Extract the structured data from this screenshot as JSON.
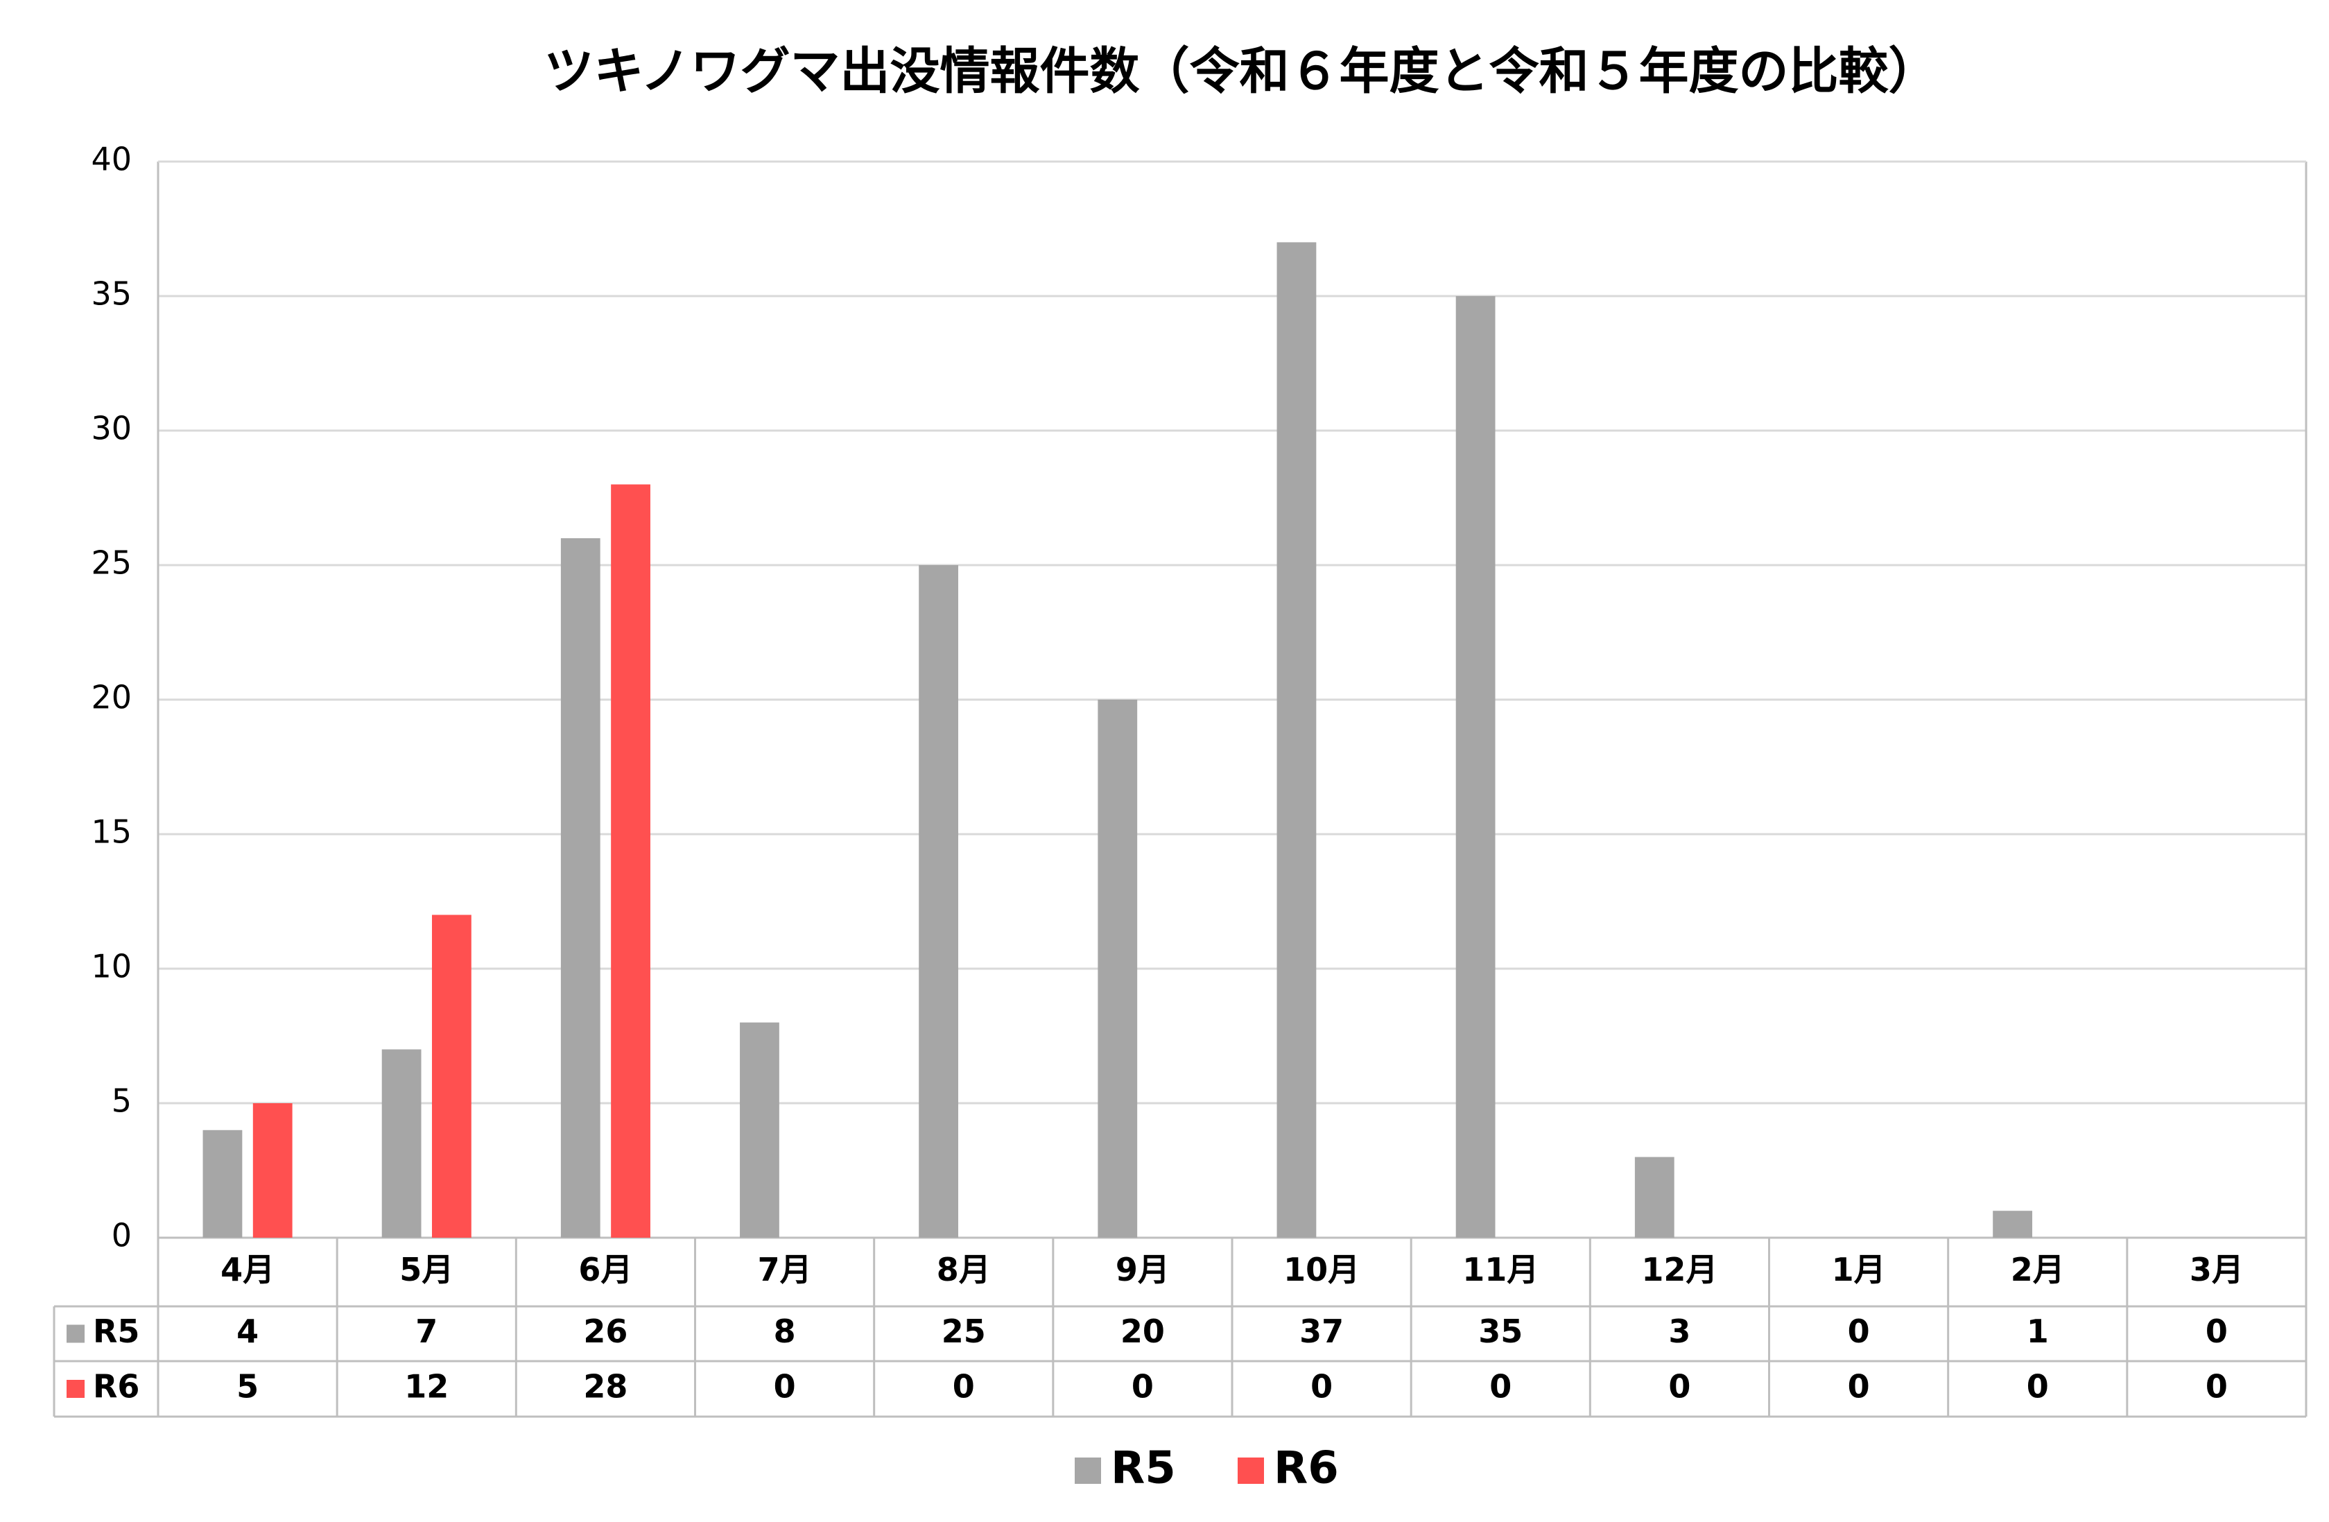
{
  "chart_data": {
    "type": "bar",
    "title": "ツキノワグマ出没情報件数（令和６年度と令和５年度の比較）",
    "categories": [
      "4月",
      "5月",
      "6月",
      "7月",
      "8月",
      "9月",
      "10月",
      "11月",
      "12月",
      "1月",
      "2月",
      "3月"
    ],
    "series": [
      {
        "name": "R5",
        "color": "#a6a6a6",
        "values": [
          4,
          7,
          26,
          8,
          25,
          20,
          37,
          35,
          3,
          0,
          1,
          0
        ]
      },
      {
        "name": "R6",
        "color": "#ff5050",
        "values": [
          5,
          12,
          28,
          0,
          0,
          0,
          0,
          0,
          0,
          0,
          0,
          0
        ]
      }
    ],
    "ylim": [
      0,
      40
    ],
    "yticks": [
      0,
      5,
      10,
      15,
      20,
      25,
      30,
      35,
      40
    ],
    "grid": true,
    "legend": "bottom"
  }
}
